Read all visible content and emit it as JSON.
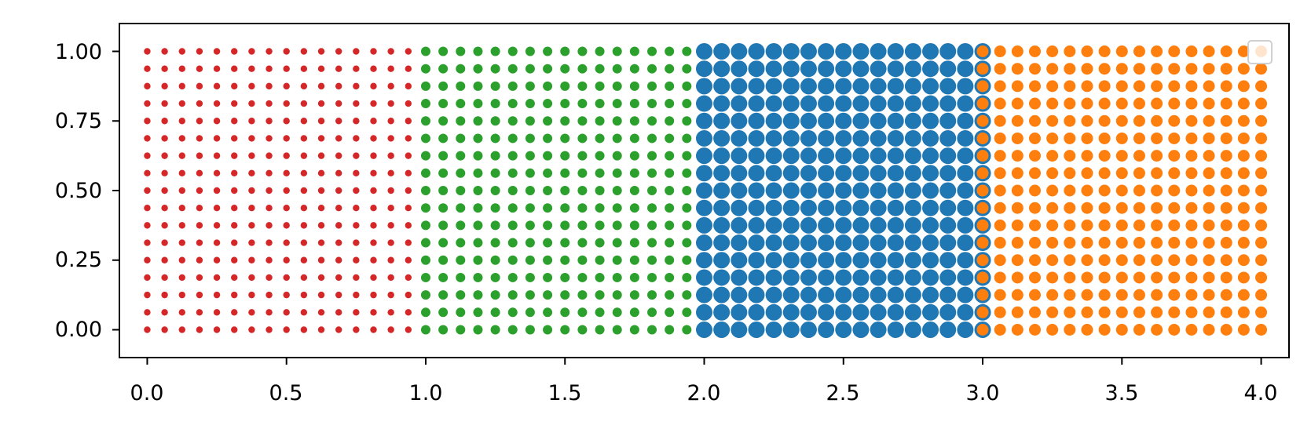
{
  "chart_data": {
    "type": "scatter",
    "title": "",
    "xlabel": "",
    "ylabel": "",
    "xlim": [
      -0.1,
      4.1
    ],
    "ylim": [
      -0.1,
      1.1
    ],
    "x_ticks": [
      "0.0",
      "0.5",
      "1.0",
      "1.5",
      "2.0",
      "2.5",
      "3.0",
      "3.5",
      "4.0"
    ],
    "y_ticks": [
      "0.00",
      "0.25",
      "0.50",
      "0.75",
      "1.00"
    ],
    "grid": false,
    "legend": {
      "placement": "upper-right",
      "entries": []
    },
    "series": [
      {
        "color": "#d62728",
        "marker": "small-dot",
        "x_range": [
          0,
          1
        ],
        "y_range": [
          0,
          1
        ],
        "nx": 17,
        "ny": 17
      },
      {
        "color": "#2ca02c",
        "marker": "medium-dot",
        "x_range": [
          1,
          2
        ],
        "y_range": [
          0,
          1
        ],
        "nx": 17,
        "ny": 17
      },
      {
        "color": "#1f77b4",
        "marker": "large-dot",
        "x_range": [
          2,
          3
        ],
        "y_range": [
          0,
          1
        ],
        "nx": 17,
        "ny": 17
      },
      {
        "color": "#ff7f0e",
        "marker": "medium-large-dot",
        "x_range": [
          3,
          4
        ],
        "y_range": [
          0,
          1
        ],
        "nx": 17,
        "ny": 17
      }
    ]
  }
}
